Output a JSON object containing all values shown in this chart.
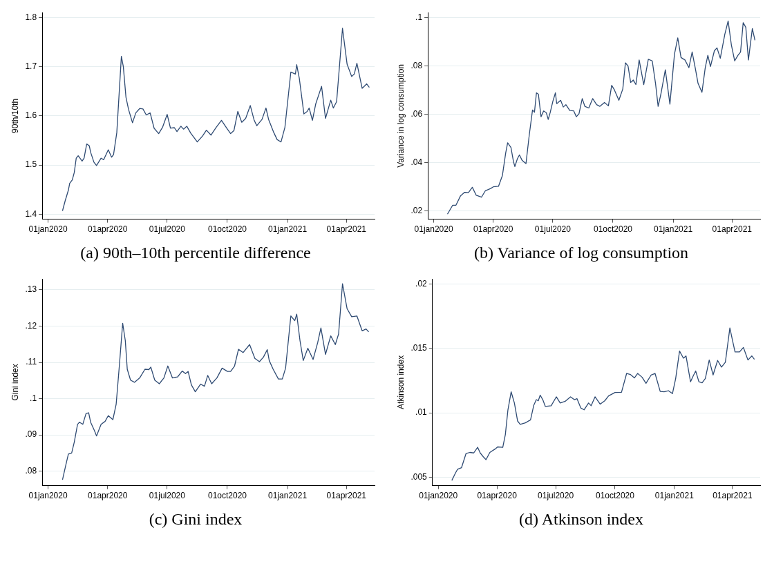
{
  "chart_data": [
    {
      "type": "line",
      "title": "(a) 90th–10th percentile difference",
      "ylabel": "90th/10th",
      "color": "#2f4b73",
      "grid": "y",
      "xlim": [
        "2019-12-23",
        "2021-05-14"
      ],
      "ylim": [
        1.39,
        1.81
      ],
      "yticks": [
        1.4,
        1.5,
        1.6,
        1.7,
        1.8
      ],
      "xticks": [
        {
          "value": "2020-01-01",
          "label": "01jan2020"
        },
        {
          "value": "2020-04-01",
          "label": "01apr2020"
        },
        {
          "value": "2020-07-01",
          "label": "01jul2020"
        },
        {
          "value": "2020-10-01",
          "label": "01oct2020"
        },
        {
          "value": "2021-01-01",
          "label": "01jan2021"
        },
        {
          "value": "2021-04-01",
          "label": "01apr2021"
        }
      ],
      "x": [
        "2020-01-23",
        "2020-01-27",
        "2020-02-01",
        "2020-02-03",
        "2020-02-07",
        "2020-02-10",
        "2020-02-13",
        "2020-02-16",
        "2020-02-22",
        "2020-02-25",
        "2020-02-29",
        "2020-03-04",
        "2020-03-06",
        "2020-03-11",
        "2020-03-15",
        "2020-03-22",
        "2020-03-26",
        "2020-04-02",
        "2020-04-07",
        "2020-04-10",
        "2020-04-15",
        "2020-04-22",
        "2020-04-25",
        "2020-04-29",
        "2020-05-03",
        "2020-05-09",
        "2020-05-14",
        "2020-05-20",
        "2020-05-25",
        "2020-05-30",
        "2020-06-05",
        "2020-06-11",
        "2020-06-18",
        "2020-06-24",
        "2020-07-01",
        "2020-07-06",
        "2020-07-12",
        "2020-07-16",
        "2020-07-22",
        "2020-07-26",
        "2020-07-31",
        "2020-08-06",
        "2020-08-16",
        "2020-08-24",
        "2020-08-30",
        "2020-09-06",
        "2020-09-14",
        "2020-09-22",
        "2020-09-30",
        "2020-10-06",
        "2020-10-11",
        "2020-10-17",
        "2020-10-23",
        "2020-10-29",
        "2020-11-05",
        "2020-11-11",
        "2020-11-15",
        "2020-11-23",
        "2020-11-29",
        "2020-12-03",
        "2020-12-11",
        "2020-12-16",
        "2020-12-22",
        "2020-12-28",
        "2021-01-06",
        "2021-01-13",
        "2021-01-15",
        "2021-01-19",
        "2021-01-26",
        "2021-01-31",
        "2021-02-03",
        "2021-02-08",
        "2021-02-13",
        "2021-02-22",
        "2021-02-28",
        "2021-03-08",
        "2021-03-12",
        "2021-03-17",
        "2021-03-26",
        "2021-04-02",
        "2021-04-09",
        "2021-04-13",
        "2021-04-17",
        "2021-04-25",
        "2021-05-02",
        "2021-05-06"
      ],
      "values": [
        1.407,
        1.427,
        1.449,
        1.463,
        1.47,
        1.485,
        1.514,
        1.519,
        1.508,
        1.514,
        1.543,
        1.539,
        1.526,
        1.506,
        1.499,
        1.514,
        1.511,
        1.531,
        1.516,
        1.521,
        1.566,
        1.721,
        1.7,
        1.638,
        1.613,
        1.586,
        1.606,
        1.615,
        1.614,
        1.602,
        1.606,
        1.575,
        1.564,
        1.577,
        1.603,
        1.575,
        1.576,
        1.568,
        1.579,
        1.573,
        1.579,
        1.565,
        1.547,
        1.559,
        1.571,
        1.561,
        1.577,
        1.591,
        1.575,
        1.564,
        1.57,
        1.609,
        1.587,
        1.595,
        1.621,
        1.591,
        1.58,
        1.593,
        1.616,
        1.593,
        1.566,
        1.552,
        1.547,
        1.577,
        1.689,
        1.685,
        1.704,
        1.676,
        1.604,
        1.609,
        1.616,
        1.591,
        1.624,
        1.66,
        1.595,
        1.632,
        1.616,
        1.629,
        1.778,
        1.705,
        1.68,
        1.685,
        1.707,
        1.656,
        1.665,
        1.658
      ]
    },
    {
      "type": "line",
      "title": "(b) Variance of log consumption",
      "ylabel": "Variance in log consumption",
      "color": "#2f4b73",
      "grid": "y",
      "xlim": [
        "2019-12-23",
        "2021-05-14"
      ],
      "ylim": [
        0.0165,
        0.102
      ],
      "yticks": [
        {
          "value": 0.02,
          "label": ".02"
        },
        {
          "value": 0.04,
          "label": ".04"
        },
        {
          "value": 0.06,
          "label": ".06"
        },
        {
          "value": 0.08,
          "label": ".08"
        },
        {
          "value": 0.1,
          "label": ".1"
        }
      ],
      "xticks": [
        {
          "value": "2020-01-01",
          "label": "01jan2020"
        },
        {
          "value": "2020-04-01",
          "label": "01apr2020"
        },
        {
          "value": "2020-07-01",
          "label": "01jul2020"
        },
        {
          "value": "2020-10-01",
          "label": "01oct2020"
        },
        {
          "value": "2021-01-01",
          "label": "01jan2021"
        },
        {
          "value": "2021-04-01",
          "label": "01apr2021"
        }
      ],
      "x": [
        "2020-01-22",
        "2020-01-30",
        "2020-02-04",
        "2020-02-11",
        "2020-02-17",
        "2020-02-23",
        "2020-02-29",
        "2020-03-06",
        "2020-03-14",
        "2020-03-20",
        "2020-03-28",
        "2020-04-01",
        "2020-04-09",
        "2020-04-15",
        "2020-04-20",
        "2020-04-23",
        "2020-04-28",
        "2020-05-02",
        "2020-05-04",
        "2020-05-08",
        "2020-05-11",
        "2020-05-15",
        "2020-05-21",
        "2020-05-26",
        "2020-05-31",
        "2020-06-03",
        "2020-06-06",
        "2020-06-09",
        "2020-06-13",
        "2020-06-17",
        "2020-06-21",
        "2020-06-24",
        "2020-06-27",
        "2020-07-01",
        "2020-07-05",
        "2020-07-07",
        "2020-07-13",
        "2020-07-17",
        "2020-07-21",
        "2020-07-27",
        "2020-08-02",
        "2020-08-06",
        "2020-08-10",
        "2020-08-15",
        "2020-08-19",
        "2020-08-25",
        "2020-08-31",
        "2020-09-06",
        "2020-09-11",
        "2020-09-18",
        "2020-09-24",
        "2020-09-29",
        "2020-10-03",
        "2020-10-10",
        "2020-10-16",
        "2020-10-20",
        "2020-10-24",
        "2020-10-28",
        "2020-11-01",
        "2020-11-05",
        "2020-11-10",
        "2020-11-17",
        "2020-11-24",
        "2020-11-30",
        "2020-12-05",
        "2020-12-09",
        "2020-12-13",
        "2020-12-20",
        "2020-12-27",
        "2021-01-03",
        "2021-01-08",
        "2021-01-13",
        "2021-01-19",
        "2021-01-25",
        "2021-01-30",
        "2021-02-04",
        "2021-02-08",
        "2021-02-14",
        "2021-02-19",
        "2021-02-23",
        "2021-02-27",
        "2021-03-05",
        "2021-03-09",
        "2021-03-14",
        "2021-03-21",
        "2021-03-26",
        "2021-03-31",
        "2021-04-05",
        "2021-04-10",
        "2021-04-14",
        "2021-04-18",
        "2021-04-22",
        "2021-04-26",
        "2021-05-02",
        "2021-05-06"
      ],
      "values": [
        0.0186,
        0.0223,
        0.0223,
        0.0262,
        0.0276,
        0.0275,
        0.0297,
        0.0264,
        0.0256,
        0.0283,
        0.0292,
        0.0299,
        0.0301,
        0.0346,
        0.0439,
        0.0481,
        0.0462,
        0.0402,
        0.0383,
        0.0416,
        0.0431,
        0.0409,
        0.0395,
        0.0513,
        0.0617,
        0.0608,
        0.0688,
        0.0682,
        0.0589,
        0.0613,
        0.0606,
        0.0578,
        0.0606,
        0.0652,
        0.0688,
        0.0643,
        0.0657,
        0.0629,
        0.0639,
        0.0615,
        0.0613,
        0.0589,
        0.0601,
        0.0664,
        0.0632,
        0.0625,
        0.0664,
        0.0639,
        0.0632,
        0.0648,
        0.0634,
        0.0719,
        0.0701,
        0.0657,
        0.0704,
        0.0812,
        0.0799,
        0.0731,
        0.0741,
        0.0722,
        0.0824,
        0.0722,
        0.0827,
        0.082,
        0.0727,
        0.0632,
        0.068,
        0.0783,
        0.0641,
        0.0848,
        0.0915,
        0.0834,
        0.0824,
        0.0792,
        0.0857,
        0.0787,
        0.0727,
        0.069,
        0.0792,
        0.0843,
        0.0797,
        0.0862,
        0.0874,
        0.0831,
        0.0931,
        0.0985,
        0.0885,
        0.082,
        0.0843,
        0.0857,
        0.0978,
        0.0959,
        0.0824,
        0.0954,
        0.0905
      ]
    },
    {
      "type": "line",
      "title": "(c) Gini index",
      "ylabel": "Gini index",
      "color": "#2f4b73",
      "grid": "y",
      "xlim": [
        "2019-12-23",
        "2021-05-14"
      ],
      "ylim": [
        0.076,
        0.133
      ],
      "yticks": [
        {
          "value": 0.08,
          "label": ".08"
        },
        {
          "value": 0.09,
          "label": ".09"
        },
        {
          "value": 0.1,
          "label": ".1"
        },
        {
          "value": 0.11,
          "label": ".11"
        },
        {
          "value": 0.12,
          "label": ".12"
        },
        {
          "value": 0.13,
          "label": ".13"
        }
      ],
      "xticks": [
        {
          "value": "2020-01-01",
          "label": "01jan2020"
        },
        {
          "value": "2020-04-01",
          "label": "01apr2020"
        },
        {
          "value": "2020-07-01",
          "label": "01jul2020"
        },
        {
          "value": "2020-10-01",
          "label": "01oct2020"
        },
        {
          "value": "2021-01-01",
          "label": "01jan2021"
        },
        {
          "value": "2021-04-01",
          "label": "01apr2021"
        }
      ],
      "x": [
        "2020-01-23",
        "2020-01-28",
        "2020-02-01",
        "2020-02-06",
        "2020-02-10",
        "2020-02-15",
        "2020-02-18",
        "2020-02-23",
        "2020-02-28",
        "2020-03-03",
        "2020-03-06",
        "2020-03-12",
        "2020-03-15",
        "2020-03-22",
        "2020-03-28",
        "2020-04-02",
        "2020-04-09",
        "2020-04-14",
        "2020-04-19",
        "2020-04-24",
        "2020-04-28",
        "2020-05-01",
        "2020-05-06",
        "2020-05-12",
        "2020-05-20",
        "2020-05-28",
        "2020-06-03",
        "2020-06-06",
        "2020-06-12",
        "2020-06-19",
        "2020-06-26",
        "2020-07-02",
        "2020-07-09",
        "2020-07-17",
        "2020-07-24",
        "2020-07-29",
        "2020-08-02",
        "2020-08-07",
        "2020-08-13",
        "2020-08-21",
        "2020-08-27",
        "2020-09-01",
        "2020-09-07",
        "2020-09-15",
        "2020-09-23",
        "2020-10-01",
        "2020-10-06",
        "2020-10-12",
        "2020-10-18",
        "2020-10-25",
        "2020-11-04",
        "2020-11-12",
        "2020-11-19",
        "2020-11-25",
        "2020-12-01",
        "2020-12-04",
        "2020-12-10",
        "2020-12-18",
        "2020-12-24",
        "2020-12-29",
        "2021-01-06",
        "2021-01-12",
        "2021-01-15",
        "2021-01-20",
        "2021-01-25",
        "2021-02-01",
        "2021-02-09",
        "2021-02-16",
        "2021-02-21",
        "2021-02-28",
        "2021-03-08",
        "2021-03-15",
        "2021-03-20",
        "2021-03-26",
        "2021-04-02",
        "2021-04-09",
        "2021-04-17",
        "2021-04-25",
        "2021-05-01",
        "2021-05-05"
      ],
      "values": [
        0.0776,
        0.0816,
        0.0847,
        0.085,
        0.088,
        0.0929,
        0.0935,
        0.0929,
        0.0959,
        0.0961,
        0.0935,
        0.0911,
        0.0897,
        0.0929,
        0.0937,
        0.0953,
        0.0942,
        0.0984,
        0.1093,
        0.1208,
        0.116,
        0.1081,
        0.1051,
        0.1045,
        0.1057,
        0.1081,
        0.108,
        0.1087,
        0.1051,
        0.1041,
        0.1057,
        0.109,
        0.1057,
        0.106,
        0.1076,
        0.1069,
        0.1075,
        0.1038,
        0.1019,
        0.104,
        0.1034,
        0.1064,
        0.1041,
        0.1057,
        0.1084,
        0.1075,
        0.1075,
        0.109,
        0.1136,
        0.1127,
        0.1149,
        0.1111,
        0.1102,
        0.1114,
        0.1135,
        0.1105,
        0.1081,
        0.1054,
        0.1054,
        0.1084,
        0.1228,
        0.1215,
        0.1233,
        0.116,
        0.1105,
        0.1139,
        0.1108,
        0.1154,
        0.1195,
        0.1122,
        0.1173,
        0.1149,
        0.1178,
        0.1317,
        0.1248,
        0.1226,
        0.1228,
        0.1187,
        0.1192,
        0.1184
      ]
    },
    {
      "type": "line",
      "title": "(d) Atkinson index",
      "ylabel": "Atkinson index",
      "color": "#2f4b73",
      "grid": "y",
      "xlim": [
        "2019-12-23",
        "2021-05-14"
      ],
      "ylim": [
        0.00434,
        0.0204
      ],
      "yticks": [
        {
          "value": 0.005,
          "label": ".005"
        },
        {
          "value": 0.01,
          "label": ".01"
        },
        {
          "value": 0.015,
          "label": ".015"
        },
        {
          "value": 0.02,
          "label": ".02"
        }
      ],
      "xticks": [
        {
          "value": "2020-01-01",
          "label": "01jan2020"
        },
        {
          "value": "2020-04-01",
          "label": "01apr2020"
        },
        {
          "value": "2020-07-01",
          "label": "01jul2020"
        },
        {
          "value": "2020-10-01",
          "label": "01oct2020"
        },
        {
          "value": "2021-01-01",
          "label": "01jan2021"
        },
        {
          "value": "2021-04-01",
          "label": "01apr2021"
        }
      ],
      "x": [
        "2020-01-22",
        "2020-01-28",
        "2020-01-31",
        "2020-02-06",
        "2020-02-13",
        "2020-02-19",
        "2020-02-25",
        "2020-03-02",
        "2020-03-06",
        "2020-03-11",
        "2020-03-15",
        "2020-03-21",
        "2020-03-29",
        "2020-04-02",
        "2020-04-10",
        "2020-04-14",
        "2020-04-18",
        "2020-04-23",
        "2020-04-28",
        "2020-05-03",
        "2020-05-07",
        "2020-05-15",
        "2020-05-23",
        "2020-05-28",
        "2020-06-01",
        "2020-06-04",
        "2020-06-07",
        "2020-06-11",
        "2020-06-15",
        "2020-06-24",
        "2020-07-02",
        "2020-07-08",
        "2020-07-16",
        "2020-07-24",
        "2020-07-30",
        "2020-08-03",
        "2020-08-09",
        "2020-08-14",
        "2020-08-21",
        "2020-08-25",
        "2020-08-31",
        "2020-09-08",
        "2020-09-15",
        "2020-09-21",
        "2020-10-01",
        "2020-10-11",
        "2020-10-19",
        "2020-10-25",
        "2020-10-31",
        "2020-11-05",
        "2020-11-12",
        "2020-11-18",
        "2020-11-26",
        "2020-12-02",
        "2020-12-10",
        "2020-12-16",
        "2020-12-23",
        "2020-12-29",
        "2021-01-03",
        "2021-01-09",
        "2021-01-15",
        "2021-01-19",
        "2021-01-26",
        "2021-01-30",
        "2021-02-03",
        "2021-02-08",
        "2021-02-13",
        "2021-02-18",
        "2021-02-24",
        "2021-03-02",
        "2021-03-09",
        "2021-03-15",
        "2021-03-21",
        "2021-03-28",
        "2021-04-01",
        "2021-04-05",
        "2021-04-12",
        "2021-04-18",
        "2021-04-25",
        "2021-05-01",
        "2021-05-05"
      ],
      "values": [
        0.00474,
        0.00535,
        0.00561,
        0.00573,
        0.00683,
        0.00692,
        0.00688,
        0.00732,
        0.00688,
        0.00657,
        0.00636,
        0.00692,
        0.00718,
        0.00735,
        0.00732,
        0.00831,
        0.01023,
        0.01163,
        0.01076,
        0.00936,
        0.0091,
        0.00922,
        0.00945,
        0.01058,
        0.01102,
        0.01093,
        0.01137,
        0.01102,
        0.01049,
        0.01055,
        0.01124,
        0.01076,
        0.0109,
        0.01124,
        0.01102,
        0.0111,
        0.01037,
        0.01023,
        0.01076,
        0.01055,
        0.01124,
        0.01067,
        0.01093,
        0.01131,
        0.01158,
        0.01159,
        0.01306,
        0.01297,
        0.01271,
        0.01306,
        0.01276,
        0.01229,
        0.01294,
        0.01306,
        0.01166,
        0.01163,
        0.01171,
        0.01149,
        0.01267,
        0.0148,
        0.01424,
        0.01442,
        0.01241,
        0.01285,
        0.01325,
        0.01241,
        0.01233,
        0.01267,
        0.0141,
        0.01294,
        0.01407,
        0.01355,
        0.01393,
        0.0166,
        0.01564,
        0.01473,
        0.01473,
        0.01508,
        0.0141,
        0.01442,
        0.01416
      ]
    }
  ]
}
